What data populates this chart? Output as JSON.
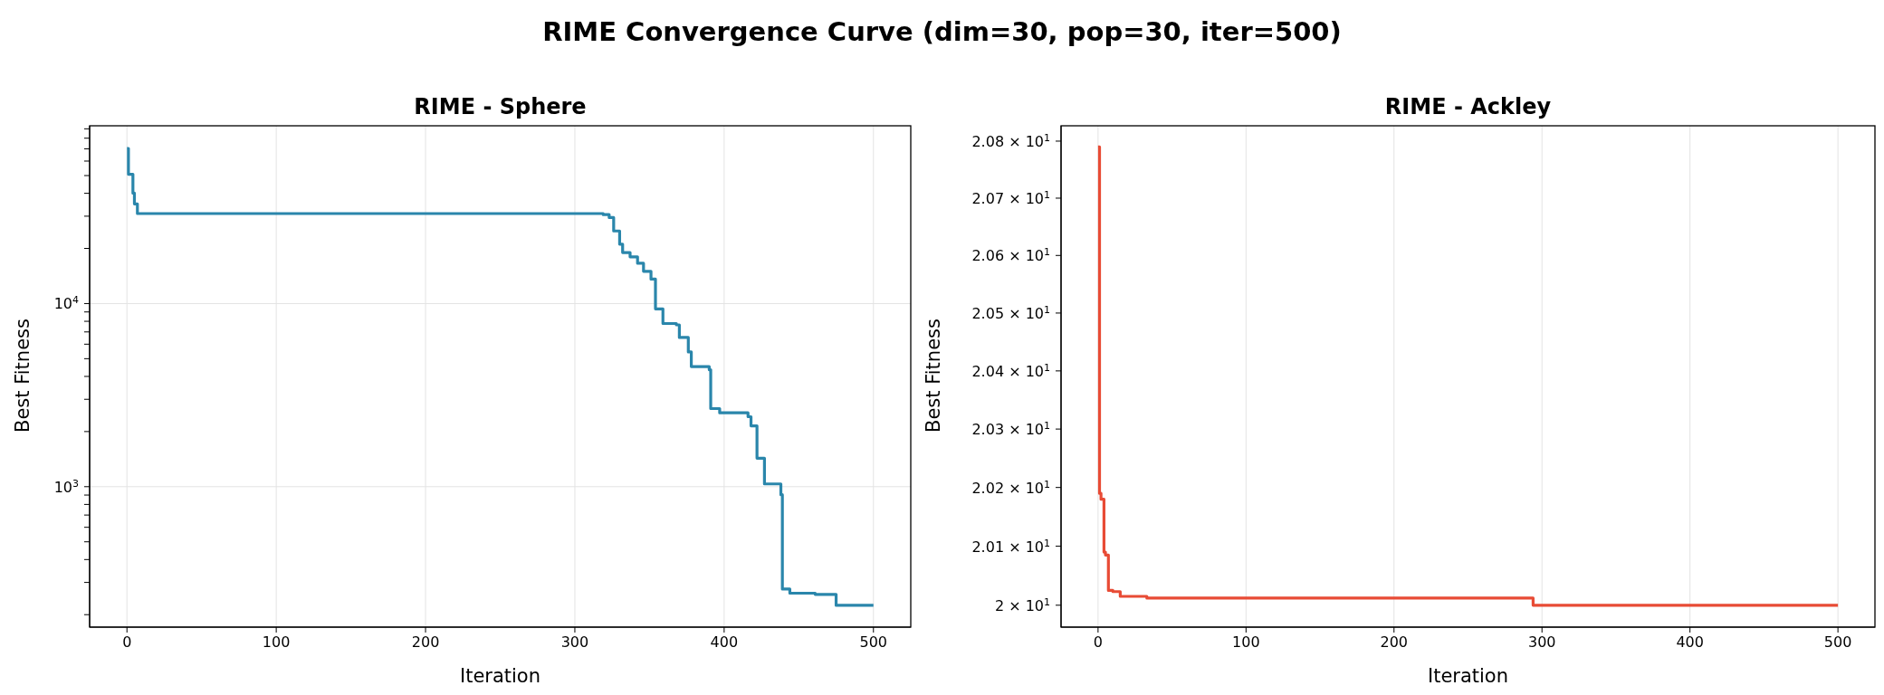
{
  "chart_data": [
    {
      "type": "step",
      "annotations": [
        "RIME Convergence Curve (dim=30, pop=30, iter=500)"
      ],
      "title": "RIME - Sphere",
      "xlabel": "Iteration",
      "ylabel": "Best Fitness",
      "log": "y",
      "grid": true,
      "marker": "none",
      "line_style": "solid",
      "xlim": [
        -25,
        525
      ],
      "xticks": [
        0,
        100,
        200,
        300,
        400,
        500
      ],
      "ylim": [
        171,
        93500
      ],
      "yticks": [
        {
          "value": 200,
          "label": null
        },
        {
          "value": 300,
          "label": null
        },
        {
          "value": 400,
          "label": null
        },
        {
          "value": 500,
          "label": null
        },
        {
          "value": 600,
          "label": null
        },
        {
          "value": 700,
          "label": null
        },
        {
          "value": 800,
          "label": null
        },
        {
          "value": 900,
          "label": null
        },
        {
          "value": 1000,
          "label": "10$^{3}$"
        },
        {
          "value": 2000,
          "label": null
        },
        {
          "value": 3000,
          "label": null
        },
        {
          "value": 4000,
          "label": null
        },
        {
          "value": 5000,
          "label": null
        },
        {
          "value": 6000,
          "label": null
        },
        {
          "value": 7000,
          "label": null
        },
        {
          "value": 8000,
          "label": null
        },
        {
          "value": 9000,
          "label": null
        },
        {
          "value": 10000,
          "label": "10$^{4}$"
        },
        {
          "value": 20000,
          "label": null
        },
        {
          "value": 30000,
          "label": null
        },
        {
          "value": 40000,
          "label": null
        },
        {
          "value": 50000,
          "label": null
        },
        {
          "value": 60000,
          "label": null
        },
        {
          "value": 70000,
          "label": null
        },
        {
          "value": 80000,
          "label": null
        },
        {
          "value": 90000,
          "label": null
        }
      ],
      "series": [
        {
          "color": "#2a86ab",
          "x": [
            0,
            1,
            4,
            5,
            7,
            319,
            323,
            326,
            330,
            332,
            337,
            342,
            346,
            351,
            354,
            359,
            368,
            370,
            376,
            378,
            390,
            391,
            397,
            416,
            418,
            422,
            427,
            438,
            439,
            444,
            461,
            475,
            500
          ],
          "values": [
            70300,
            50800,
            40100,
            35000,
            31000,
            30600,
            29500,
            24900,
            21100,
            19000,
            18000,
            16600,
            15000,
            13600,
            9350,
            7780,
            7650,
            6530,
            5440,
            4530,
            4350,
            2670,
            2530,
            2410,
            2150,
            1430,
            1035,
            904,
            276,
            262,
            258,
            225,
            225
          ]
        }
      ]
    },
    {
      "type": "step",
      "title": "RIME - Ackley",
      "xlabel": "Iteration",
      "ylabel": "Best Fitness",
      "log": "y",
      "grid": "x",
      "marker": "none",
      "line_style": "solid",
      "xlim": [
        -25,
        525
      ],
      "xticks": [
        0,
        100,
        200,
        300,
        400,
        500
      ],
      "ylim": [
        19.963,
        20.827
      ],
      "yticks": [
        {
          "value": 20,
          "label": "2 × 10$^{1}$"
        },
        {
          "value": 20.1,
          "label": "2.01 × 10$^{1}$"
        },
        {
          "value": 20.2,
          "label": "2.02 × 10$^{1}$"
        },
        {
          "value": 20.3,
          "label": "2.03 × 10$^{1}$"
        },
        {
          "value": 20.4,
          "label": "2.04 × 10$^{1}$"
        },
        {
          "value": 20.5,
          "label": "2.05 × 10$^{1}$"
        },
        {
          "value": 20.6,
          "label": "2.06 × 10$^{1}$"
        },
        {
          "value": 20.7,
          "label": "2.07 × 10$^{1}$"
        },
        {
          "value": 20.8,
          "label": "2.08 × 10$^{1}$"
        }
      ],
      "series": [
        {
          "color": "#e84b35",
          "x": [
            0,
            1,
            2,
            4,
            5,
            7,
            10,
            15,
            33,
            293,
            294,
            500
          ],
          "values": [
            20.79,
            20.19,
            20.18,
            20.09,
            20.085,
            20.025,
            20.023,
            20.015,
            20.012,
            20.012,
            20.0,
            20.0
          ]
        }
      ]
    }
  ]
}
